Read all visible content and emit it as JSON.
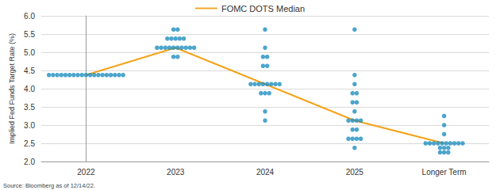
{
  "chart_data": {
    "type": "scatter",
    "categories": [
      "2022",
      "2023",
      "2024",
      "2025",
      "Longer Term"
    ],
    "ylabel": "Implied Fed Funds Target Rate (%)",
    "annotations": [
      "Source: Bloomberg as of 12/14/22."
    ],
    "ylim": [
      2,
      6
    ],
    "yticks": [
      {
        "value": 2,
        "label": "2.0"
      },
      {
        "value": 2.5,
        "label": "2.5"
      },
      {
        "value": 3,
        "label": "3.0"
      },
      {
        "value": 3.5,
        "label": "3.5"
      },
      {
        "value": 4,
        "label": "4.0"
      },
      {
        "value": 4.5,
        "label": "4.5"
      },
      {
        "value": 5,
        "label": "5.0"
      },
      {
        "value": 5.5,
        "label": "5.5"
      },
      {
        "value": 6,
        "label": "6.0"
      }
    ],
    "grid": true,
    "legend": "top",
    "series": [
      {
        "type": "scatter",
        "marker": "circle",
        "color": "#1f8fbf",
        "values": [
          [
            4.375,
            4.375,
            4.375,
            4.375,
            4.375,
            4.375,
            4.375,
            4.375,
            4.375,
            4.375,
            4.375,
            4.375,
            4.375,
            4.375,
            4.375,
            4.375,
            4.375,
            4.375,
            4.375
          ],
          [
            5.625,
            5.625,
            5.375,
            5.375,
            5.375,
            5.375,
            5.375,
            5.125,
            5.125,
            5.125,
            5.125,
            5.125,
            5.125,
            5.125,
            5.125,
            5.125,
            5.125,
            4.875,
            4.875
          ],
          [
            5.625,
            5.125,
            4.875,
            4.875,
            4.625,
            4.625,
            4.125,
            4.125,
            4.125,
            4.125,
            4.125,
            4.125,
            4.125,
            4.125,
            3.875,
            3.875,
            3.875,
            3.375,
            3.125
          ],
          [
            5.625,
            4.375,
            4.125,
            3.875,
            3.875,
            3.625,
            3.625,
            3.375,
            3.125,
            3.125,
            3.125,
            3.125,
            2.875,
            2.875,
            2.625,
            2.625,
            2.625,
            2.625,
            2.375
          ],
          [
            3.25,
            3.0,
            2.75,
            2.5,
            2.5,
            2.5,
            2.5,
            2.5,
            2.5,
            2.5,
            2.5,
            2.5,
            2.5,
            2.375,
            2.375,
            2.375,
            2.25,
            2.25,
            2.25
          ]
        ]
      },
      {
        "name": "FOMC DOTS Median",
        "type": "line",
        "color": "#f5a31a",
        "line_style": "solid",
        "values": [
          4.375,
          5.125,
          4.125,
          3.125,
          2.5
        ]
      }
    ]
  }
}
